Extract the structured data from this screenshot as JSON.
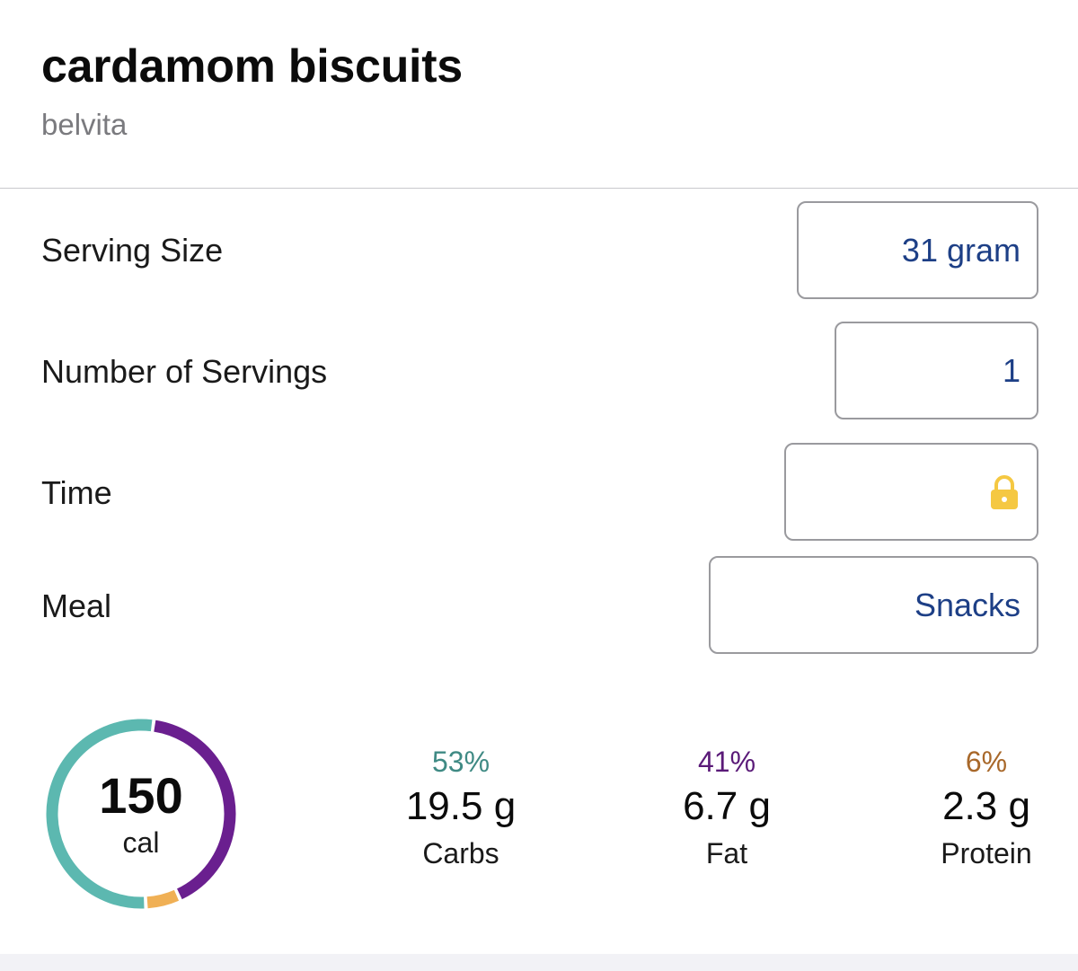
{
  "food": {
    "title": "cardamom biscuits",
    "brand": "belvita"
  },
  "fields": {
    "serving_size": {
      "label": "Serving Size",
      "value": "31 gram"
    },
    "servings": {
      "label": "Number of Servings",
      "value": "1"
    },
    "time": {
      "label": "Time",
      "value": "",
      "icon": "lock-icon",
      "icon_color": "#f5c842"
    },
    "meal": {
      "label": "Meal",
      "value": "Snacks"
    }
  },
  "calories": {
    "value": "150",
    "unit": "cal"
  },
  "macros": {
    "carbs": {
      "percent": "53%",
      "grams": "19.5 g",
      "label": "Carbs",
      "color": "#5cb8b0",
      "pct_color": "#3f8a84"
    },
    "fat": {
      "percent": "41%",
      "grams": "6.7 g",
      "label": "Fat",
      "color": "#6a1f8f",
      "pct_color": "#5a1a78"
    },
    "protein": {
      "percent": "6%",
      "grams": "2.3 g",
      "label": "Protein",
      "color": "#f0b055",
      "pct_color": "#a8682a"
    }
  },
  "colors": {
    "field_value": "#1d3f86",
    "field_border": "#9a9a9e",
    "divider": "#c8c8cc"
  }
}
